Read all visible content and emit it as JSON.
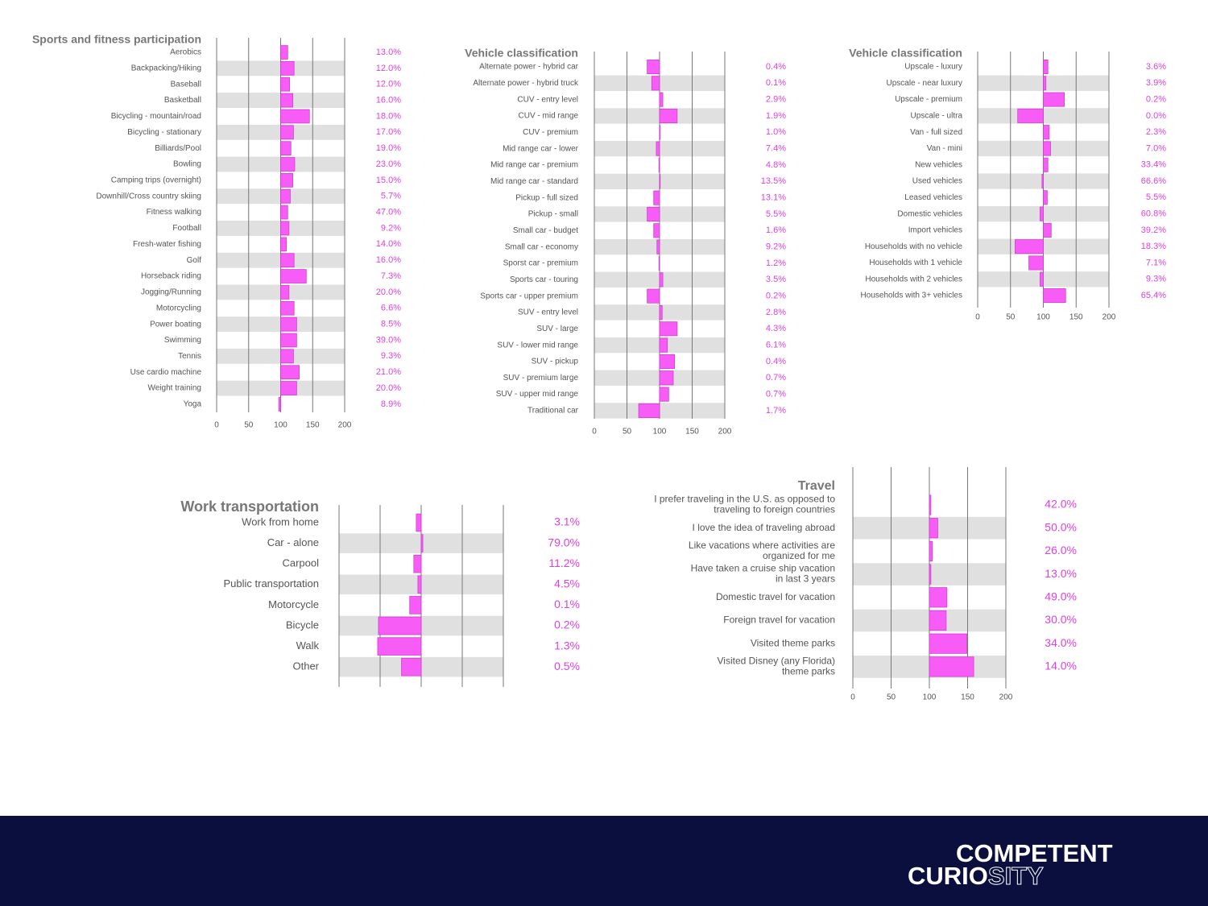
{
  "chart_data": [
    {
      "type": "bar",
      "title": "Sports and fitness participation",
      "color": "#f75cf7",
      "categories": [
        "Aerobics",
        "Backpacking/Hiking",
        "Baseball",
        "Basketball",
        "Bicycling - mountain/road",
        "Bicycling - stationary",
        "Billiards/Pool",
        "Bowling",
        "Camping trips (overnight)",
        "Downhill/Cross country skiing",
        "Fitness walking",
        "Football",
        "Fresh-water fishing",
        "Golf",
        "Horseback riding",
        "Jogging/Running",
        "Motorcycling",
        "Power boating",
        "Swimming",
        "Tennis",
        "Use cardio machine",
        "Weight training",
        "Yoga"
      ],
      "values": [
        111,
        121,
        114,
        119,
        145,
        120,
        116,
        122,
        119,
        115,
        111,
        113,
        109,
        121,
        140,
        113,
        121,
        125,
        125,
        120,
        129,
        125,
        97
      ],
      "shares": [
        "13.0%",
        "12.0%",
        "12.0%",
        "16.0%",
        "18.0%",
        "17.0%",
        "19.0%",
        "23.0%",
        "15.0%",
        "5.7%",
        "47.0%",
        "9.2%",
        "14.0%",
        "16.0%",
        "7.3%",
        "20.0%",
        "6.6%",
        "8.5%",
        "39.0%",
        "9.3%",
        "21.0%",
        "20.0%",
        "8.9%"
      ],
      "xlim": [
        0,
        200
      ],
      "xticks": [
        0,
        50,
        100,
        150,
        200
      ],
      "baseline": 100
    },
    {
      "type": "bar",
      "title": "Vehicle classification",
      "color": "#f75cf7",
      "categories": [
        "Alternate power - hybrid car",
        "Alternate power - hybrid truck",
        "CUV - entry level",
        "CUV - mid range",
        "CUV - premium",
        "Mid range car - lower",
        "Mid range car - premium",
        "Mid range car - standard",
        "Pickup - full sized",
        "Pickup - small",
        "Small car - budget",
        "Small car - economy",
        "Sporst car - premium",
        "Sports car - touring",
        "Sports car - upper premium",
        "SUV - entry level",
        "SUV - large",
        "SUV - lower mid range",
        "SUV - pickup",
        "SUV - premium large",
        "SUV - upper mid range",
        "Traditional car"
      ],
      "values": [
        81,
        88,
        105,
        127,
        101,
        95,
        99,
        101,
        91,
        81,
        91,
        96,
        99,
        105,
        81,
        104,
        127,
        112,
        123,
        121,
        114,
        68
      ],
      "shares": [
        "0.4%",
        "0.1%",
        "2.9%",
        "1.9%",
        "1.0%",
        "7.4%",
        "4.8%",
        "13.5%",
        "13.1%",
        "5.5%",
        "1.6%",
        "9.2%",
        "1.2%",
        "3.5%",
        "0.2%",
        "2.8%",
        "4.3%",
        "6.1%",
        "0.4%",
        "0.7%",
        "0.7%",
        "1.7%"
      ],
      "xlim": [
        0,
        200
      ],
      "xticks": [
        0,
        50,
        100,
        150,
        200
      ],
      "baseline": 100
    },
    {
      "type": "bar",
      "title": "Vehicle classification",
      "color": "#f75cf7",
      "categories": [
        "Upscale - luxury",
        "Upscale - near luxury",
        "Upscale - premium",
        "Upscale - ultra",
        "Van - full sized",
        "Van - mini",
        "New vehicles",
        "Used vehicles",
        "Leased vehicles",
        "Domestic vehicles",
        "Import vehicles",
        "Households with no vehicle",
        "Households with 1 vehicle",
        "Households with 2 vehicles",
        "Households with 3+ vehicles"
      ],
      "values": [
        107,
        104,
        132,
        61,
        109,
        111,
        107,
        98,
        106,
        95,
        112,
        57,
        78,
        95,
        134
      ],
      "shares": [
        "3.6%",
        "3.9%",
        "0.2%",
        "0.0%",
        "2.3%",
        "7.0%",
        "33.4%",
        "66.6%",
        "5.5%",
        "60.8%",
        "39.2%",
        "18.3%",
        "7.1%",
        "9.3%",
        "65.4%"
      ],
      "xlim": [
        0,
        200
      ],
      "xticks": [
        0,
        50,
        100,
        150,
        200
      ],
      "baseline": 100
    },
    {
      "type": "bar",
      "title": "Work transportation",
      "color": "#f75cf7",
      "categories": [
        "Work from home",
        "Car - alone",
        "Carpool",
        "Public transportation",
        "Motorcycle",
        "Bicycle",
        "Walk",
        "Other"
      ],
      "values": [
        94,
        102,
        91,
        96,
        86,
        48,
        47,
        76
      ],
      "shares": [
        "3.1%",
        "79.0%",
        "11.2%",
        "4.5%",
        "0.1%",
        "0.2%",
        "1.3%",
        "0.5%"
      ],
      "xlim": [
        0,
        200
      ],
      "gridlines": [
        0,
        50,
        100,
        150,
        200
      ],
      "baseline": 100
    },
    {
      "type": "bar",
      "title": "Travel",
      "color": "#f75cf7",
      "categories": [
        "I prefer traveling in the U.S. as opposed to\ntraveling to foreign countries",
        "I love the idea of traveling abroad",
        "Like vacations where activities are\norganized for me",
        "Have taken a cruise ship vacation\nin last 3 years",
        "Domestic travel for vacation",
        "Foreign travel for vacation",
        "Visited theme parks",
        "Visited Disney (any Florida)\ntheme parks"
      ],
      "values": [
        102,
        111,
        104,
        102,
        123,
        122,
        149,
        158
      ],
      "shares": [
        "42.0%",
        "50.0%",
        "26.0%",
        "13.0%",
        "49.0%",
        "30.0%",
        "34.0%",
        "14.0%"
      ],
      "xlim": [
        0,
        200
      ],
      "xticks": [
        0,
        50,
        100,
        150,
        200
      ],
      "baseline": 100
    }
  ],
  "footer": {
    "brand_top": "COMPETENT",
    "brand_bottom_solid": "CURIO",
    "brand_bottom_outline": "SITY"
  }
}
